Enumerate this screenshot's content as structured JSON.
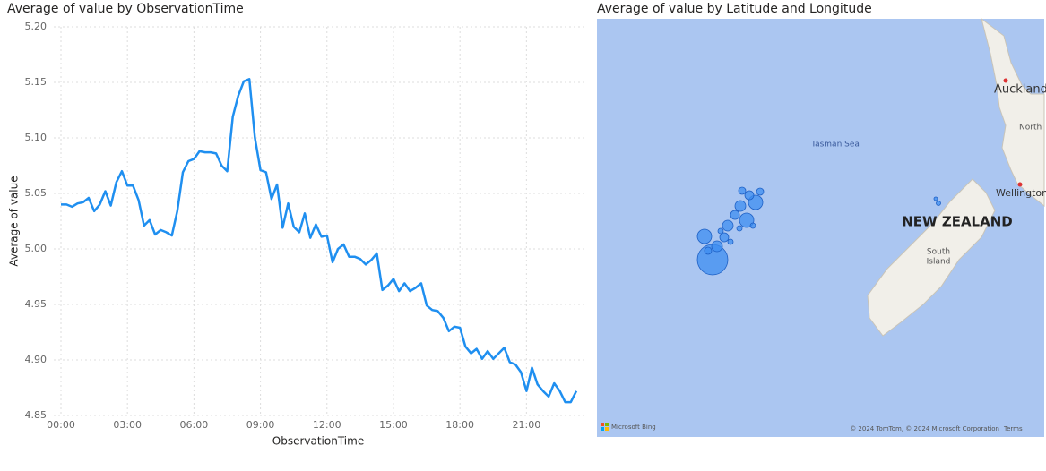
{
  "chart_data": {
    "type": "line",
    "title": "Average of value by ObservationTime",
    "x_label": "ObservationTime",
    "y_label": "Average of value",
    "color": "#1f8ff0",
    "grid": true,
    "x": [
      "00:00",
      "00:15",
      "00:30",
      "00:45",
      "01:00",
      "01:15",
      "01:30",
      "01:45",
      "02:00",
      "02:15",
      "02:30",
      "02:45",
      "03:00",
      "03:15",
      "03:30",
      "03:45",
      "04:00",
      "04:15",
      "04:30",
      "04:45",
      "05:00",
      "05:15",
      "05:30",
      "05:45",
      "06:00",
      "06:15",
      "06:30",
      "06:45",
      "07:00",
      "07:15",
      "07:30",
      "07:45",
      "08:00",
      "08:15",
      "08:30",
      "08:45",
      "09:00",
      "09:15",
      "09:30",
      "09:45",
      "10:00",
      "10:15",
      "10:30",
      "10:45",
      "11:00",
      "11:15",
      "11:30",
      "11:45",
      "12:00",
      "12:15",
      "12:30",
      "12:45",
      "13:00",
      "13:15",
      "13:30",
      "13:45",
      "14:00",
      "14:15",
      "14:30",
      "14:45",
      "15:00",
      "15:15",
      "15:30",
      "15:45",
      "16:00",
      "16:15",
      "16:30",
      "16:45",
      "17:00",
      "17:15",
      "17:30",
      "17:45",
      "18:00",
      "18:15",
      "18:30",
      "18:45",
      "19:00",
      "19:15",
      "19:30",
      "19:45",
      "20:00",
      "20:15",
      "20:30",
      "20:45",
      "21:00",
      "21:15",
      "21:30",
      "21:45",
      "22:00",
      "22:15",
      "22:30",
      "22:45",
      "23:00",
      "23:15"
    ],
    "values": [
      5.04,
      5.04,
      5.038,
      5.041,
      5.042,
      5.046,
      5.034,
      5.04,
      5.052,
      5.039,
      5.06,
      5.07,
      5.057,
      5.057,
      5.044,
      5.021,
      5.026,
      5.013,
      5.017,
      5.015,
      5.012,
      5.034,
      5.069,
      5.079,
      5.081,
      5.088,
      5.087,
      5.087,
      5.086,
      5.075,
      5.07,
      5.119,
      5.138,
      5.151,
      5.153,
      5.1,
      5.071,
      5.069,
      5.045,
      5.058,
      5.019,
      5.041,
      5.02,
      5.015,
      5.032,
      5.01,
      5.022,
      5.011,
      5.012,
      4.988,
      5.0,
      5.004,
      4.993,
      4.993,
      4.991,
      4.986,
      4.99,
      4.996,
      4.963,
      4.967,
      4.973,
      4.962,
      4.969,
      4.962,
      4.965,
      4.969,
      4.949,
      4.945,
      4.944,
      4.938,
      4.926,
      4.93,
      4.929,
      4.912,
      4.906,
      4.91,
      4.901,
      4.908,
      4.901,
      4.906,
      4.911,
      4.898,
      4.896,
      4.889,
      4.872,
      4.893,
      4.878,
      4.872,
      4.867,
      4.879,
      4.872,
      4.862,
      4.862,
      4.872
    ],
    "xlim": [
      "00:00",
      "23:15"
    ],
    "xticks": [
      "00:00",
      "03:00",
      "06:00",
      "09:00",
      "12:00",
      "15:00",
      "18:00",
      "21:00"
    ],
    "ylim": [
      4.85,
      5.2
    ],
    "yticks": [
      {
        "value": 4.85,
        "label": "4.85"
      },
      {
        "value": 4.9,
        "label": "4.90"
      },
      {
        "value": 4.95,
        "label": "4.95"
      },
      {
        "value": 5,
        "label": "5.00"
      },
      {
        "value": 5.05,
        "label": "5.05"
      },
      {
        "value": 5.1,
        "label": "5.10"
      },
      {
        "value": 5.15,
        "label": "5.15"
      },
      {
        "value": 5.2,
        "label": "5.20"
      }
    ]
  },
  "map": {
    "title": "Average of value by Latitude and Longitude",
    "labels": {
      "sea": "Tasman Sea",
      "auckland": "Auckland",
      "north": "North",
      "wellington": "Wellington",
      "country": "NEW ZEALAND",
      "south": "South",
      "island": "Island"
    },
    "logo": "Microsoft Bing",
    "copyright": "© 2024 TomTom, © 2024 Microsoft Corporation",
    "terms": "Terms"
  }
}
